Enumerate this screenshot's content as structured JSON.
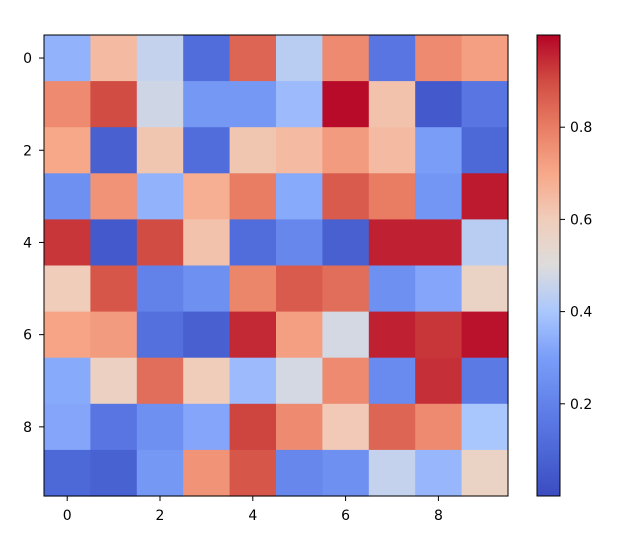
{
  "chart_data": {
    "type": "heatmap",
    "title": "",
    "xlabel": "",
    "ylabel": "",
    "x_ticks": [
      "0",
      "2",
      "4",
      "6",
      "8"
    ],
    "y_ticks": [
      "0",
      "2",
      "4",
      "6",
      "8"
    ],
    "rows": 10,
    "cols": 10,
    "colormap": "coolwarm",
    "colorbar": {
      "min": 0.0,
      "max": 1.0,
      "ticks": [
        "0.2",
        "0.4",
        "0.6",
        "0.8"
      ]
    },
    "values": [
      [
        0.35,
        0.65,
        0.45,
        0.12,
        0.85,
        0.43,
        0.77,
        0.15,
        0.77,
        0.72
      ],
      [
        0.77,
        0.9,
        0.47,
        0.28,
        0.28,
        0.37,
        0.99,
        0.63,
        0.05,
        0.15
      ],
      [
        0.7,
        0.07,
        0.62,
        0.12,
        0.62,
        0.65,
        0.73,
        0.65,
        0.3,
        0.1
      ],
      [
        0.25,
        0.75,
        0.35,
        0.68,
        0.8,
        0.33,
        0.87,
        0.8,
        0.27,
        0.97
      ],
      [
        0.93,
        0.05,
        0.9,
        0.63,
        0.12,
        0.22,
        0.07,
        0.96,
        0.96,
        0.43
      ],
      [
        0.6,
        0.88,
        0.2,
        0.25,
        0.78,
        0.87,
        0.83,
        0.25,
        0.32,
        0.57
      ],
      [
        0.71,
        0.73,
        0.13,
        0.07,
        0.95,
        0.72,
        0.48,
        0.96,
        0.93,
        0.98
      ],
      [
        0.33,
        0.58,
        0.83,
        0.6,
        0.37,
        0.48,
        0.77,
        0.23,
        0.94,
        0.17
      ],
      [
        0.32,
        0.15,
        0.25,
        0.32,
        0.91,
        0.77,
        0.61,
        0.85,
        0.77,
        0.4
      ],
      [
        0.1,
        0.08,
        0.28,
        0.75,
        0.88,
        0.22,
        0.25,
        0.45,
        0.36,
        0.57
      ]
    ]
  }
}
